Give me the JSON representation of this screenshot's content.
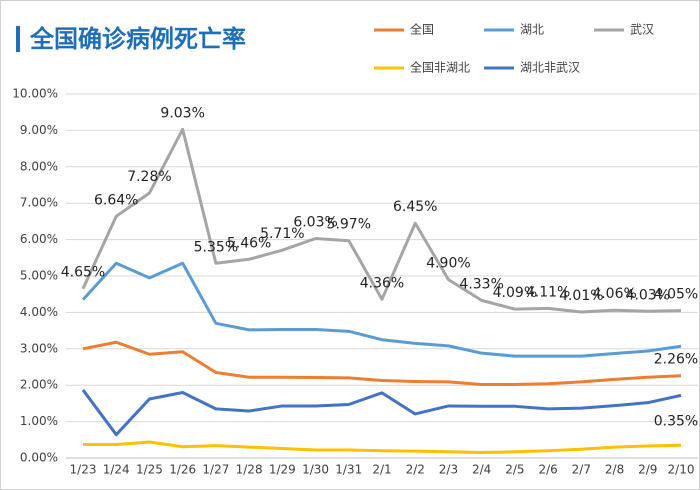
{
  "chart_data": {
    "type": "line",
    "title": "全国确诊病例死亡率",
    "categories": [
      "1/23",
      "1/24",
      "1/25",
      "1/26",
      "1/27",
      "1/28",
      "1/29",
      "1/30",
      "1/31",
      "2/1",
      "2/2",
      "2/3",
      "2/4",
      "2/5",
      "2/6",
      "2/7",
      "2/8",
      "2/9",
      "2/10"
    ],
    "series": [
      {
        "name": "全国",
        "color": "#ED7D31",
        "values": [
          3.0,
          3.18,
          2.85,
          2.92,
          2.35,
          2.22,
          2.22,
          2.21,
          2.2,
          2.13,
          2.1,
          2.09,
          2.02,
          2.02,
          2.04,
          2.09,
          2.16,
          2.22,
          2.26
        ],
        "value_labels": [
          null,
          null,
          null,
          null,
          null,
          null,
          null,
          null,
          null,
          null,
          null,
          null,
          null,
          null,
          null,
          null,
          null,
          null,
          "2.26%"
        ]
      },
      {
        "name": "湖北",
        "color": "#5B9BD5",
        "values": [
          4.35,
          5.35,
          4.95,
          5.35,
          3.7,
          3.52,
          3.53,
          3.53,
          3.48,
          3.25,
          3.15,
          3.08,
          2.88,
          2.8,
          2.8,
          2.8,
          2.87,
          2.94,
          3.07
        ]
      },
      {
        "name": "武汉",
        "color": "#A5A5A5",
        "values": [
          4.65,
          6.64,
          7.28,
          9.03,
          5.35,
          5.46,
          5.71,
          6.03,
          5.97,
          4.36,
          6.45,
          4.9,
          4.33,
          4.09,
          4.11,
          4.01,
          4.06,
          4.03,
          4.05
        ],
        "value_labels": [
          "4.65%",
          "6.64%",
          "7.28%",
          "9.03%",
          "5.35%",
          "5.46%",
          "5.71%",
          "6.03%",
          "5.97%",
          "4.36%",
          "6.45%",
          "4.90%",
          "4.33%",
          "4.09%",
          "4.11%",
          "4.01%",
          "4.06%",
          "4.03%",
          "4.05%"
        ]
      },
      {
        "name": "全国非湖北",
        "color": "#FFC000",
        "values": [
          0.37,
          0.37,
          0.44,
          0.31,
          0.34,
          0.3,
          0.26,
          0.22,
          0.22,
          0.2,
          0.19,
          0.17,
          0.15,
          0.17,
          0.2,
          0.24,
          0.3,
          0.33,
          0.35
        ],
        "value_labels": [
          null,
          null,
          null,
          null,
          null,
          null,
          null,
          null,
          null,
          null,
          null,
          null,
          null,
          null,
          null,
          null,
          null,
          null,
          "0.35%"
        ]
      },
      {
        "name": "湖北非武汉",
        "color": "#4472C4",
        "values": [
          1.87,
          0.64,
          1.62,
          1.8,
          1.35,
          1.29,
          1.43,
          1.43,
          1.47,
          1.79,
          1.21,
          1.43,
          1.42,
          1.42,
          1.35,
          1.37,
          1.44,
          1.52,
          1.72
        ]
      }
    ],
    "ylim": [
      0,
      10
    ],
    "yticks": [
      {
        "value": 0,
        "label": "0.00%"
      },
      {
        "value": 1,
        "label": "1.00%"
      },
      {
        "value": 2,
        "label": "2.00%"
      },
      {
        "value": 3,
        "label": "3.00%"
      },
      {
        "value": 4,
        "label": "4.00%"
      },
      {
        "value": 5,
        "label": "5.00%"
      },
      {
        "value": 6,
        "label": "6.00%"
      },
      {
        "value": 7,
        "label": "7.00%"
      },
      {
        "value": 8,
        "label": "8.00%"
      },
      {
        "value": 9,
        "label": "9.00%"
      },
      {
        "value": 10,
        "label": "10.00%"
      }
    ],
    "grid": true
  }
}
